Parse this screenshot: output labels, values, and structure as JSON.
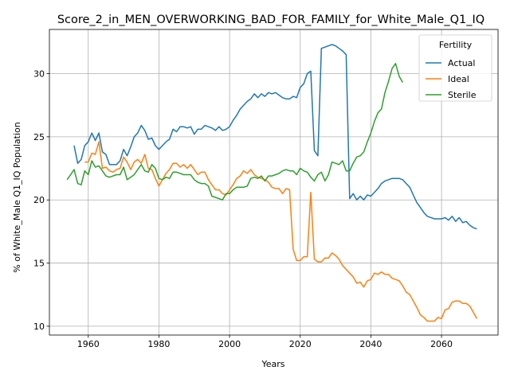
{
  "chart_data": {
    "type": "line",
    "title": "Score_2_in_MEN_OVERWORKING_BAD_FOR_FAMILY_for_White_Male_Q1_IQ",
    "xlabel": "Years",
    "ylabel": "% of White_Male Q1_IQ Population",
    "xlim": [
      1949,
      2076
    ],
    "ylim": [
      9.3,
      33.5
    ],
    "xticks": [
      1960,
      1980,
      2000,
      2020,
      2040,
      2060
    ],
    "yticks": [
      10,
      15,
      20,
      25,
      30
    ],
    "grid": true,
    "legend": {
      "title": "Fertility",
      "placement": "top-right",
      "entries": [
        "Actual",
        "Ideal",
        "Sterile"
      ]
    },
    "series": [
      {
        "name": "Actual",
        "color": "#1f77b4",
        "x": [
          1956,
          1957,
          1958,
          1959,
          1960,
          1961,
          1962,
          1963,
          1964,
          1965,
          1966,
          1967,
          1968,
          1969,
          1970,
          1971,
          1972,
          1973,
          1974,
          1975,
          1976,
          1977,
          1978,
          1979,
          1980,
          1981,
          1982,
          1983,
          1984,
          1985,
          1986,
          1987,
          1988,
          1989,
          1990,
          1991,
          1992,
          1993,
          1994,
          1995,
          1996,
          1997,
          1998,
          1999,
          2000,
          2001,
          2002,
          2003,
          2004,
          2005,
          2006,
          2007,
          2008,
          2009,
          2010,
          2011,
          2012,
          2013,
          2014,
          2015,
          2016,
          2017,
          2018,
          2019,
          2020,
          2021,
          2022,
          2023,
          2024,
          2025,
          2026,
          2027,
          2028,
          2029,
          2030,
          2031,
          2032,
          2033,
          2034,
          2035,
          2036,
          2037,
          2038,
          2039,
          2040,
          2041,
          2042,
          2043,
          2044,
          2045,
          2046,
          2047,
          2048,
          2049,
          2050,
          2051,
          2052,
          2053,
          2054,
          2055,
          2056,
          2057,
          2058,
          2059,
          2060,
          2061,
          2062,
          2063,
          2064,
          2065,
          2066,
          2067,
          2068,
          2069,
          2070
        ],
        "values": [
          24.3,
          22.9,
          23.2,
          24.3,
          24.6,
          25.3,
          24.7,
          25.3,
          23.8,
          23.6,
          22.8,
          22.8,
          22.8,
          23.1,
          24.0,
          23.5,
          24.2,
          25.0,
          25.3,
          25.9,
          25.5,
          24.8,
          24.9,
          24.3,
          24.0,
          24.3,
          24.6,
          24.8,
          25.6,
          25.4,
          25.8,
          25.8,
          25.7,
          25.8,
          25.2,
          25.6,
          25.6,
          25.9,
          25.8,
          25.7,
          25.5,
          25.8,
          25.5,
          25.6,
          25.8,
          26.3,
          26.7,
          27.2,
          27.5,
          27.8,
          28.0,
          28.4,
          28.1,
          28.4,
          28.2,
          28.5,
          28.4,
          28.5,
          28.3,
          28.1,
          28.0,
          28.0,
          28.2,
          28.1,
          28.9,
          29.2,
          30.0,
          30.2,
          23.9,
          23.5,
          32.0,
          32.1,
          32.2,
          32.3,
          32.2,
          32.0,
          31.8,
          31.5,
          20.1,
          20.5,
          20.0,
          20.3,
          20.0,
          20.4,
          20.3,
          20.6,
          20.9,
          21.3,
          21.5,
          21.6,
          21.7,
          21.7,
          21.7,
          21.6,
          21.3,
          21.0,
          20.4,
          19.8,
          19.4,
          19.0,
          18.7,
          18.6,
          18.5,
          18.5,
          18.5,
          18.6,
          18.4,
          18.7,
          18.3,
          18.6,
          18.2,
          18.3,
          18.0,
          17.8,
          17.7
        ]
      },
      {
        "name": "Ideal",
        "color": "#ff7f0e",
        "x": [
          1959,
          1960,
          1961,
          1962,
          1963,
          1964,
          1965,
          1966,
          1967,
          1968,
          1969,
          1970,
          1971,
          1972,
          1973,
          1974,
          1975,
          1976,
          1977,
          1978,
          1979,
          1980,
          1981,
          1982,
          1983,
          1984,
          1985,
          1986,
          1987,
          1988,
          1989,
          1990,
          1991,
          1992,
          1993,
          1994,
          1995,
          1996,
          1997,
          1998,
          1999,
          2000,
          2001,
          2002,
          2003,
          2004,
          2005,
          2006,
          2007,
          2008,
          2009,
          2010,
          2011,
          2012,
          2013,
          2014,
          2015,
          2016,
          2017,
          2018,
          2019,
          2020,
          2021,
          2022,
          2023,
          2024,
          2025,
          2026,
          2027,
          2028,
          2029,
          2030,
          2031,
          2032,
          2033,
          2034,
          2035,
          2036,
          2037,
          2038,
          2039,
          2040,
          2041,
          2042,
          2043,
          2044,
          2045,
          2046,
          2047,
          2048,
          2049,
          2050,
          2051,
          2052,
          2053,
          2054,
          2055,
          2056,
          2057,
          2058,
          2059,
          2060,
          2061,
          2062,
          2063,
          2064,
          2065,
          2066,
          2067,
          2068,
          2069,
          2070
        ],
        "values": [
          23.0,
          23.0,
          23.7,
          23.6,
          24.6,
          22.5,
          22.6,
          22.3,
          22.2,
          22.4,
          22.5,
          23.4,
          23.0,
          22.4,
          23.0,
          23.2,
          22.9,
          23.6,
          22.5,
          22.4,
          21.7,
          21.1,
          21.6,
          22.1,
          22.4,
          22.9,
          22.9,
          22.6,
          22.8,
          22.5,
          22.8,
          22.4,
          22.0,
          22.2,
          22.2,
          21.6,
          21.2,
          20.8,
          20.8,
          20.5,
          20.4,
          20.8,
          21.2,
          21.7,
          21.9,
          22.3,
          22.1,
          22.4,
          22.0,
          21.8,
          21.7,
          21.6,
          21.4,
          21.0,
          20.9,
          20.9,
          20.5,
          20.9,
          20.8,
          16.1,
          15.2,
          15.2,
          15.5,
          15.5,
          20.6,
          15.3,
          15.1,
          15.1,
          15.4,
          15.4,
          15.8,
          15.6,
          15.3,
          14.8,
          14.5,
          14.2,
          13.9,
          13.4,
          13.5,
          13.1,
          13.6,
          13.7,
          14.2,
          14.1,
          14.3,
          14.1,
          14.1,
          13.8,
          13.7,
          13.6,
          13.2,
          12.7,
          12.5,
          12.0,
          11.5,
          10.9,
          10.7,
          10.4,
          10.4,
          10.4,
          10.7,
          10.6,
          11.3,
          11.4,
          11.9,
          12.0,
          12.0,
          11.8,
          11.8,
          11.6,
          11.1,
          10.6
        ]
      },
      {
        "name": "Sterile",
        "color": "#2ca02c",
        "x": [
          1954,
          1955,
          1956,
          1957,
          1958,
          1959,
          1960,
          1961,
          1962,
          1963,
          1964,
          1965,
          1966,
          1967,
          1968,
          1969,
          1970,
          1971,
          1972,
          1973,
          1974,
          1975,
          1976,
          1977,
          1978,
          1979,
          1980,
          1981,
          1982,
          1983,
          1984,
          1985,
          1986,
          1987,
          1988,
          1989,
          1990,
          1991,
          1992,
          1993,
          1994,
          1995,
          1996,
          1997,
          1998,
          1999,
          2000,
          2001,
          2002,
          2003,
          2004,
          2005,
          2006,
          2007,
          2008,
          2009,
          2010,
          2011,
          2012,
          2013,
          2014,
          2015,
          2016,
          2017,
          2018,
          2019,
          2020,
          2021,
          2022,
          2023,
          2024,
          2025,
          2026,
          2027,
          2028,
          2029,
          2030,
          2031,
          2032,
          2033,
          2034,
          2035,
          2036,
          2037,
          2038,
          2039,
          2040,
          2041,
          2042,
          2043,
          2044,
          2045,
          2046,
          2047,
          2048,
          2049
        ],
        "values": [
          21.6,
          22.0,
          22.4,
          21.3,
          21.2,
          22.3,
          22.0,
          23.1,
          22.6,
          22.7,
          22.3,
          21.9,
          21.8,
          21.9,
          22.0,
          22.0,
          22.6,
          21.6,
          21.8,
          22.0,
          22.4,
          22.8,
          22.3,
          22.2,
          22.8,
          22.5,
          21.7,
          21.6,
          21.8,
          21.7,
          22.2,
          22.2,
          22.1,
          22.0,
          22.0,
          22.0,
          21.6,
          21.4,
          21.3,
          21.3,
          21.1,
          20.3,
          20.2,
          20.1,
          20.0,
          20.5,
          20.5,
          20.8,
          21.0,
          21.0,
          21.0,
          21.1,
          21.7,
          21.8,
          21.7,
          21.9,
          21.5,
          21.9,
          21.9,
          22.0,
          22.1,
          22.3,
          22.4,
          22.3,
          22.3,
          22.0,
          22.5,
          22.3,
          22.2,
          21.8,
          21.5,
          22.0,
          22.2,
          21.5,
          22.0,
          23.0,
          22.9,
          22.8,
          23.1,
          22.3,
          22.3,
          22.9,
          23.4,
          23.5,
          23.8,
          24.6,
          25.3,
          26.2,
          26.9,
          27.2,
          28.5,
          29.4,
          30.4,
          30.8,
          29.8,
          29.3
        ]
      }
    ]
  }
}
